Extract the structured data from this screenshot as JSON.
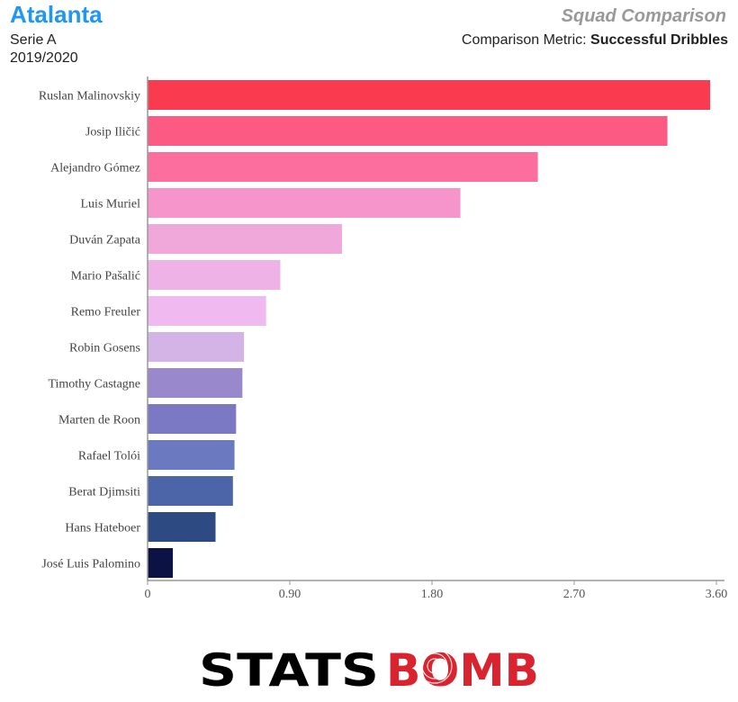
{
  "header": {
    "team": "Atalanta",
    "league": "Serie A",
    "season": "2019/2020",
    "report_title": "Squad Comparison",
    "metric_label": "Comparison Metric:",
    "metric_value": "Successful Dribbles"
  },
  "logo": {
    "text_left": "STATS",
    "text_right": "BOMB",
    "color_left": "#000000",
    "color_right": "#d9232e"
  },
  "chart_data": {
    "type": "bar",
    "orientation": "horizontal",
    "title": "",
    "xlabel": "",
    "ylabel": "",
    "xlim": [
      0,
      3.6
    ],
    "xticks": [
      "0",
      "0.90",
      "1.80",
      "2.70",
      "3.60"
    ],
    "grid": false,
    "categories": [
      "Ruslan Malinovskiy",
      "Josip Iličić",
      "Alejandro Gómez",
      "Luis Muriel",
      "Duván Zapata",
      "Mario Pašalić",
      "Remo Freuler",
      "Robin Gosens",
      "Timothy Castagne",
      "Marten de Roon",
      "Rafael Tolói",
      "Berat Djimsiti",
      "Hans Hateboer",
      "José Luis Palomino"
    ],
    "values": [
      3.56,
      3.29,
      2.47,
      1.98,
      1.23,
      0.84,
      0.75,
      0.61,
      0.6,
      0.56,
      0.55,
      0.54,
      0.43,
      0.16
    ],
    "colors": [
      "#f93a4f",
      "#fc5a82",
      "#fc6e9e",
      "#f595cb",
      "#f0a8db",
      "#eeb2e6",
      "#f0baf0",
      "#d4b3e6",
      "#9a88cc",
      "#7b79c4",
      "#6b79c0",
      "#4b65a8",
      "#2e4a82",
      "#0c1244"
    ]
  }
}
